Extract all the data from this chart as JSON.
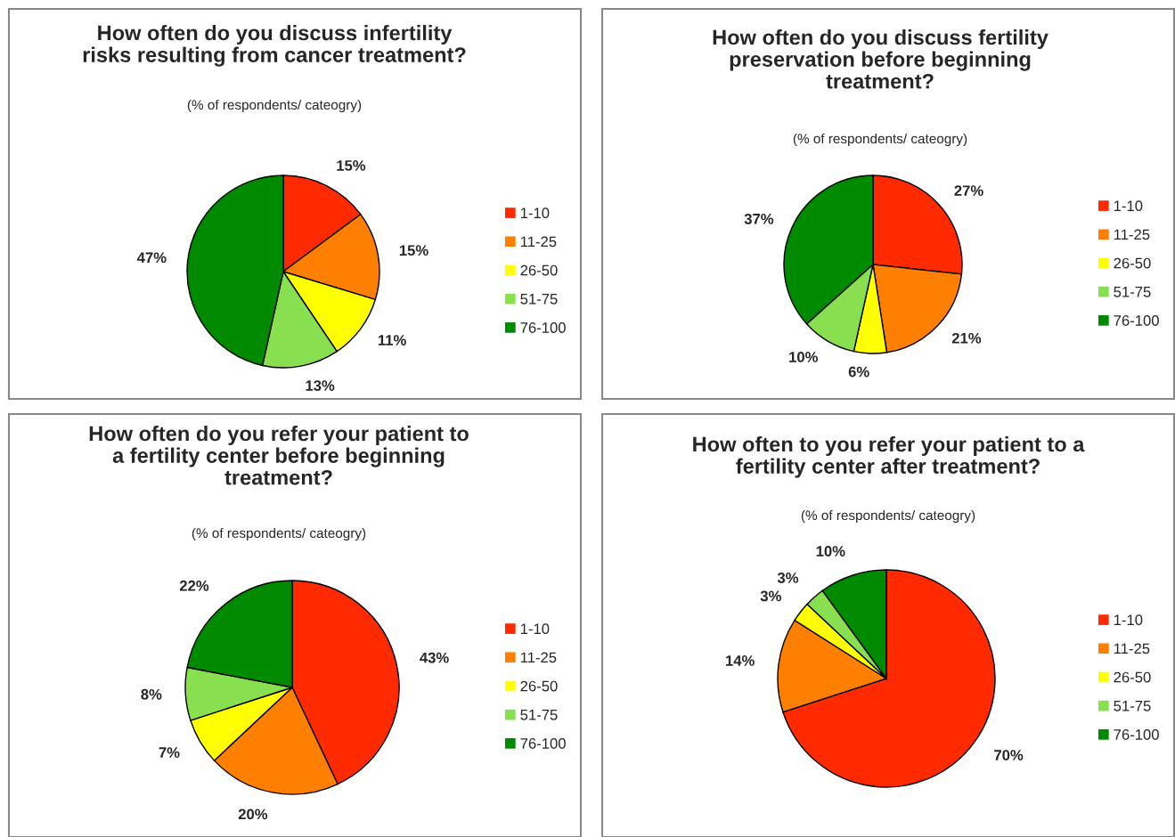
{
  "chart_data": [
    {
      "type": "pie",
      "title": "How often do you discuss infertility\nrisks resulting from cancer treatment?",
      "subtitle": "(% of respondents/ cateogry)",
      "categories": [
        "1-10",
        "11-25",
        "26-50",
        "51-75",
        "76-100"
      ],
      "values": [
        15,
        15,
        11,
        13,
        47
      ],
      "colors": [
        "#ff2a00",
        "#ff7f00",
        "#ffff00",
        "#88e050",
        "#008a00"
      ],
      "value_labels": [
        "15%",
        "15%",
        "11%",
        "13%",
        "47%"
      ],
      "legend": "right"
    },
    {
      "type": "pie",
      "title": "How often do you discuss fertility\npreservation before beginning\ntreatment?",
      "subtitle": "(% of respondents/ cateogry)",
      "categories": [
        "1-10",
        "11-25",
        "26-50",
        "51-75",
        "76-100"
      ],
      "values": [
        27,
        21,
        6,
        10,
        37
      ],
      "colors": [
        "#ff2a00",
        "#ff7f00",
        "#ffff00",
        "#88e050",
        "#008a00"
      ],
      "value_labels": [
        "27%",
        "21%",
        "6%",
        "10%",
        "37%"
      ],
      "legend": "right"
    },
    {
      "type": "pie",
      "title": "How often do you refer your patient to\na fertility center before beginning\ntreatment?",
      "subtitle": "(% of respondents/ cateogry)",
      "categories": [
        "1-10",
        "11-25",
        "26-50",
        "51-75",
        "76-100"
      ],
      "values": [
        43,
        20,
        7,
        8,
        22
      ],
      "colors": [
        "#ff2a00",
        "#ff7f00",
        "#ffff00",
        "#88e050",
        "#008a00"
      ],
      "value_labels": [
        "43%",
        "20%",
        "7%",
        "8%",
        "22%"
      ],
      "legend": "right"
    },
    {
      "type": "pie",
      "title": "How often to you refer your patient to a\nfertility center after treatment?",
      "subtitle": "(% of respondents/ cateogry)",
      "categories": [
        "1-10",
        "11-25",
        "26-50",
        "51-75",
        "76-100"
      ],
      "values": [
        70,
        14,
        3,
        3,
        10
      ],
      "colors": [
        "#ff2a00",
        "#ff7f00",
        "#ffff00",
        "#88e050",
        "#008a00"
      ],
      "value_labels": [
        "70%",
        "14%",
        "3%",
        "3%",
        "10%"
      ],
      "legend": "right"
    }
  ]
}
